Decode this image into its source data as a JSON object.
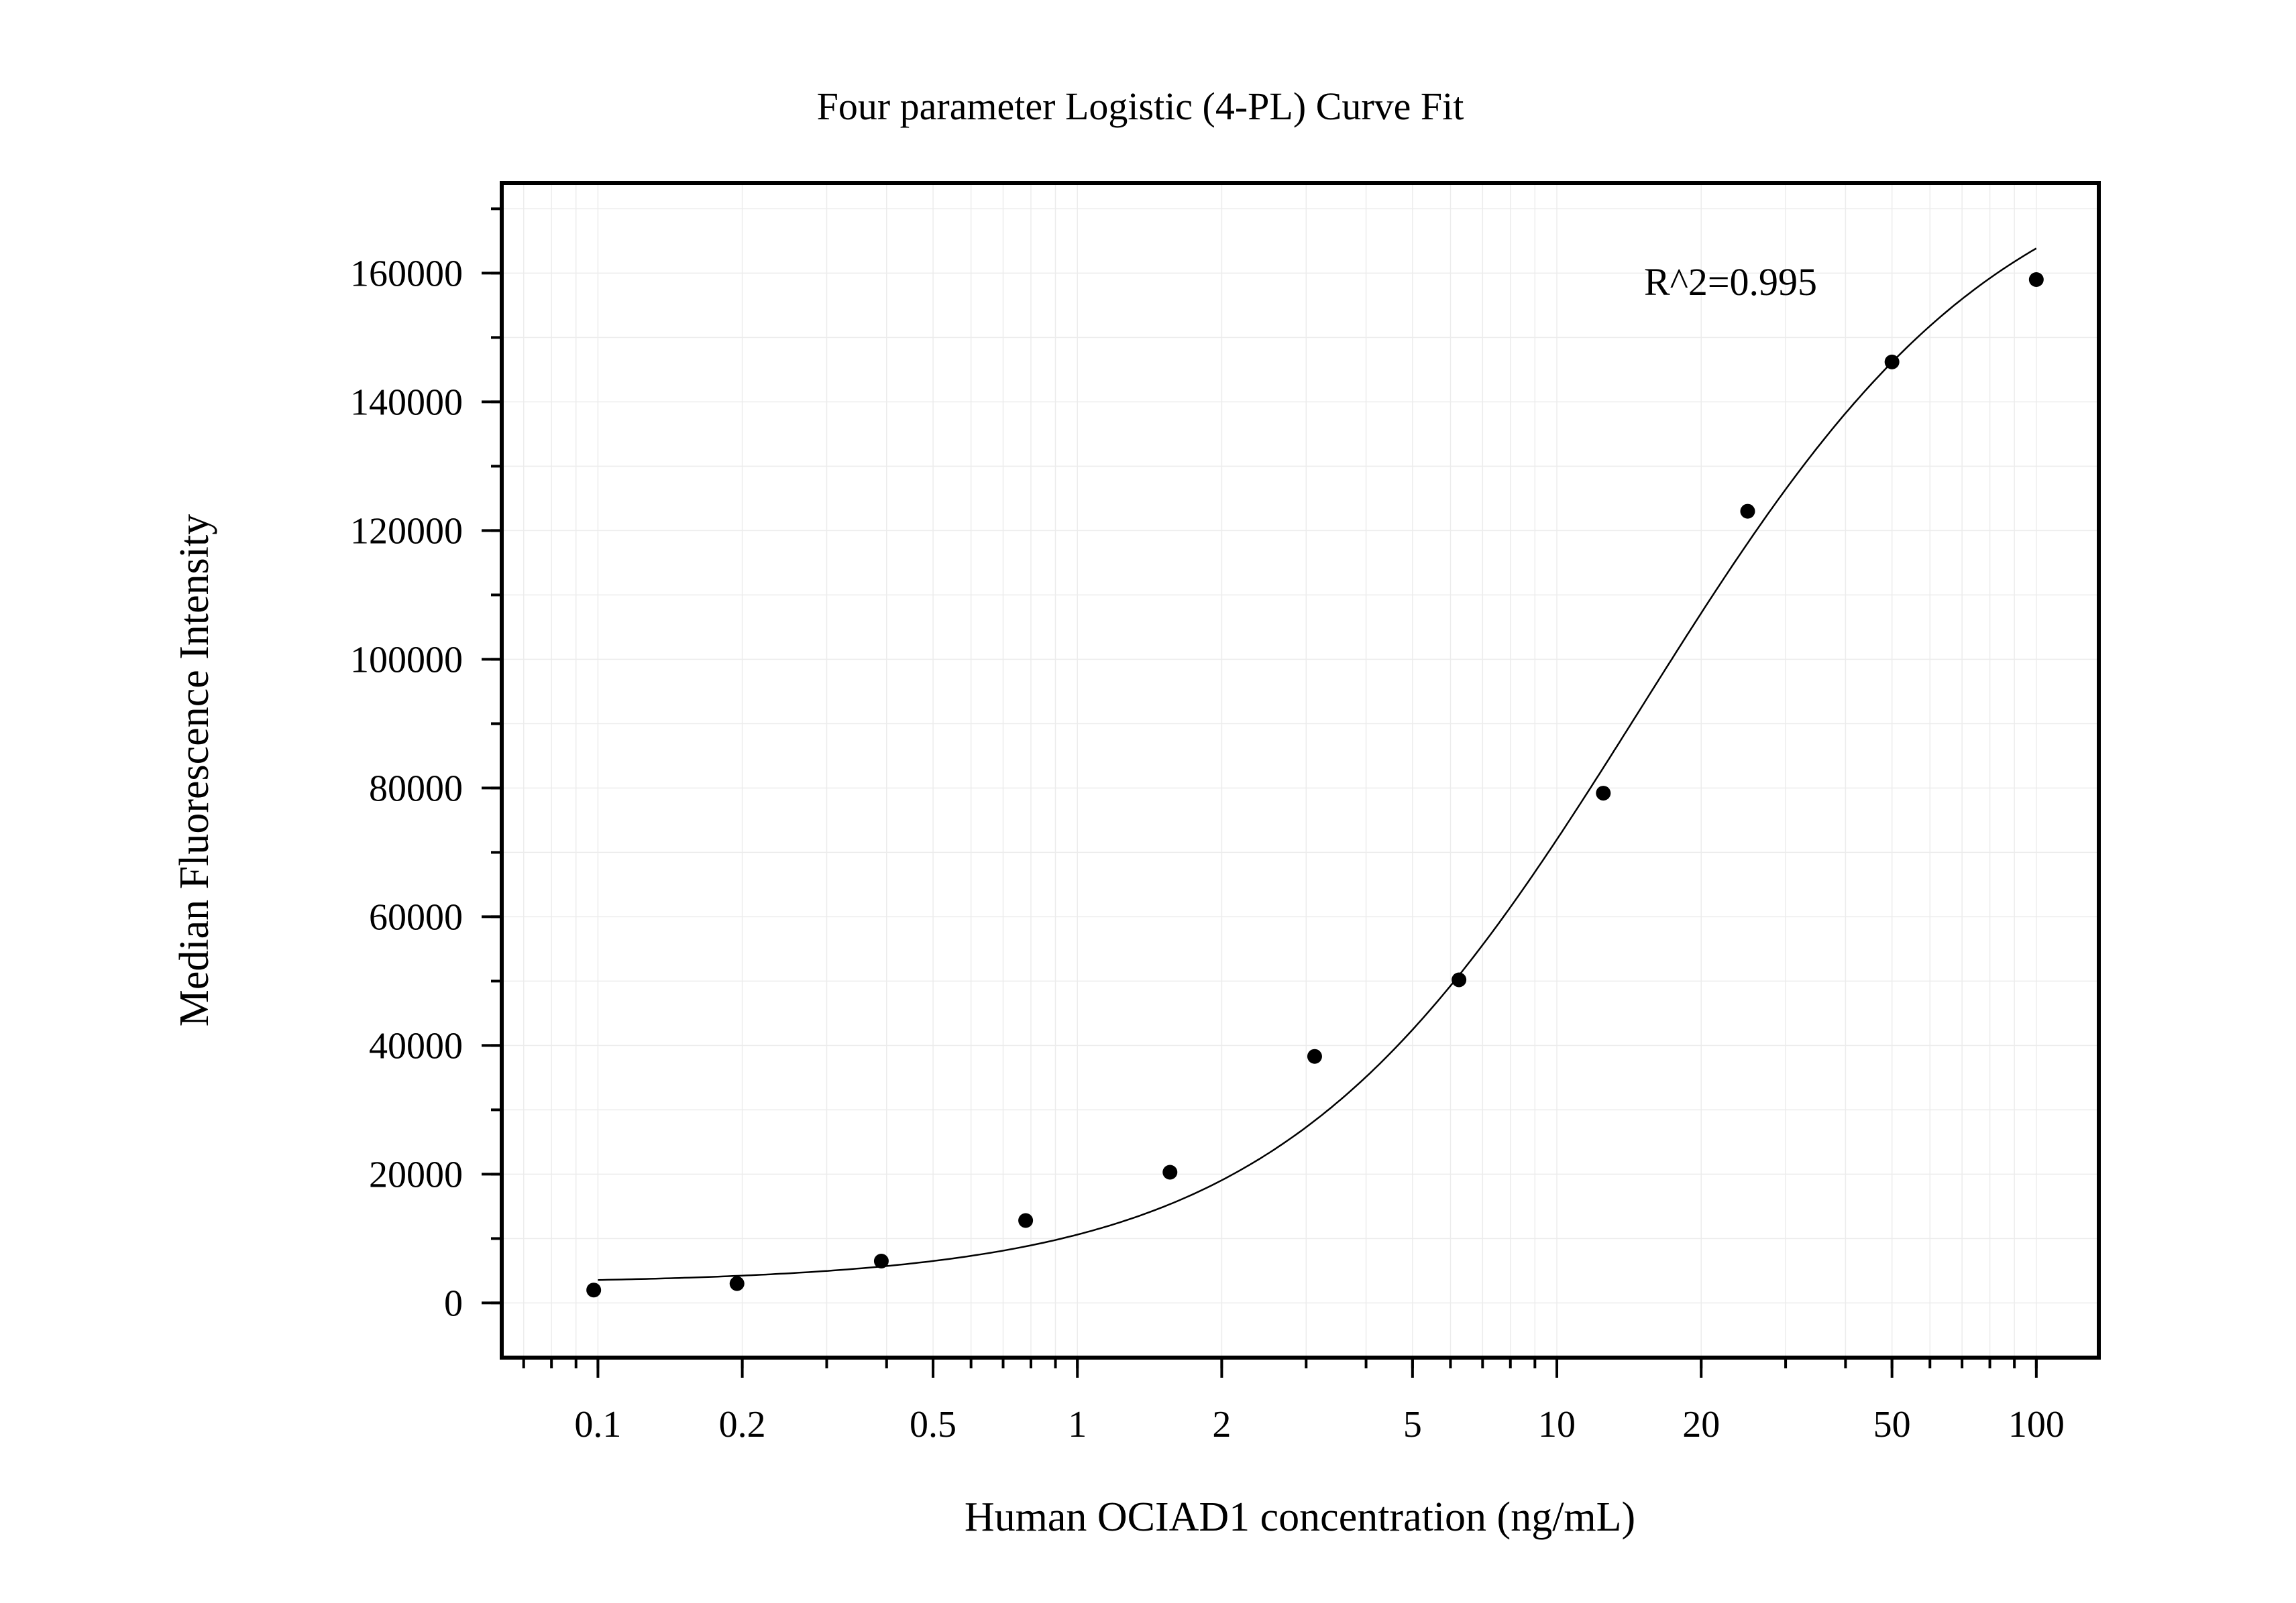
{
  "chart_data": {
    "type": "scatter",
    "title": "Four parameter Logistic (4-PL) Curve Fit",
    "xlabel": "Human OCIAD1 concentration (ng/mL)",
    "ylabel": "Median Fluorescence Intensity",
    "x_scale": "log",
    "xlim": [
      0.063,
      135
    ],
    "ylim": [
      -8500,
      174000
    ],
    "x_ticks": [
      0.1,
      0.2,
      0.5,
      1,
      2,
      5,
      10,
      20,
      50,
      100
    ],
    "x_tick_labels": [
      "0.1",
      "0.2",
      "0.5",
      "1",
      "2",
      "5",
      "10",
      "20",
      "50",
      "100"
    ],
    "y_ticks": [
      0,
      20000,
      40000,
      60000,
      80000,
      100000,
      120000,
      140000,
      160000
    ],
    "y_tick_labels": [
      "0",
      "20000",
      "40000",
      "60000",
      "80000",
      "100000",
      "120000",
      "140000",
      "160000"
    ],
    "grid": true,
    "annotation": "R^2=0.995",
    "series": [
      {
        "kind": "points",
        "x": [
          0.098,
          0.195,
          0.39,
          0.78,
          1.56,
          3.125,
          6.25,
          12.5,
          25,
          50,
          100
        ],
        "y": [
          2000,
          3000,
          6500,
          12800,
          20300,
          38300,
          50200,
          79200,
          123000,
          146200,
          159000
        ]
      },
      {
        "kind": "fit-curve",
        "model": "4PL",
        "params": {
          "A": 3000,
          "D": 182000,
          "C": 15,
          "B": 1.15
        },
        "x_range": [
          0.1,
          100
        ]
      }
    ]
  }
}
